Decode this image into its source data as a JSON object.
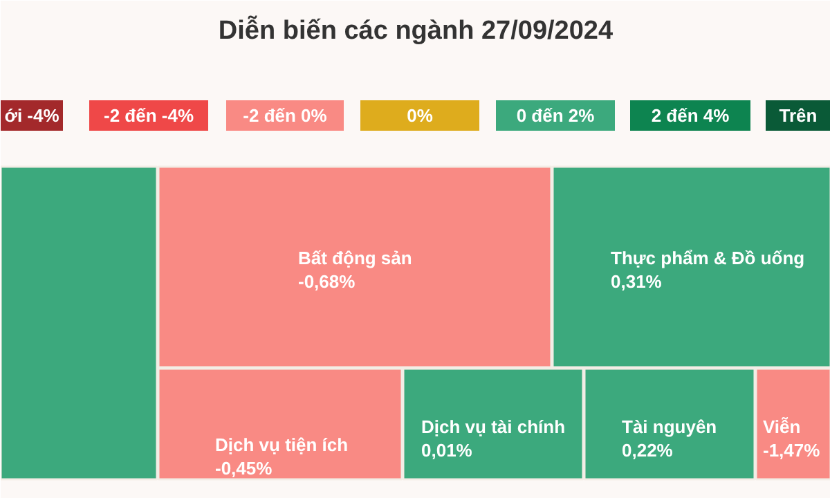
{
  "chart_data": {
    "type": "other",
    "title": "Diễn biến các ngành 27/09/2024",
    "annotations": [
      "ới -4%",
      "-2 đến -4%",
      "-2 đến 0%",
      "0%",
      "0 đến 2%",
      "2 đến 4%",
      "Trên"
    ],
    "categories": [
      null,
      "Bất động sản",
      "Thực phẩm & Đồ uống",
      "Dịch vụ tiện ích",
      "Dịch vụ tài chính",
      "Tài nguyên",
      "Viễn"
    ],
    "values": [
      null,
      -0.68,
      0.31,
      -0.45,
      0.01,
      0.22,
      -1.47
    ],
    "value_labels": [
      null,
      "-0,68%",
      "0,31%",
      "-0,45%",
      "0,01%",
      "0,22%",
      "-1,47%"
    ],
    "colors": [
      "#3ca97d",
      null,
      null,
      null,
      null,
      null,
      null
    ]
  }
}
